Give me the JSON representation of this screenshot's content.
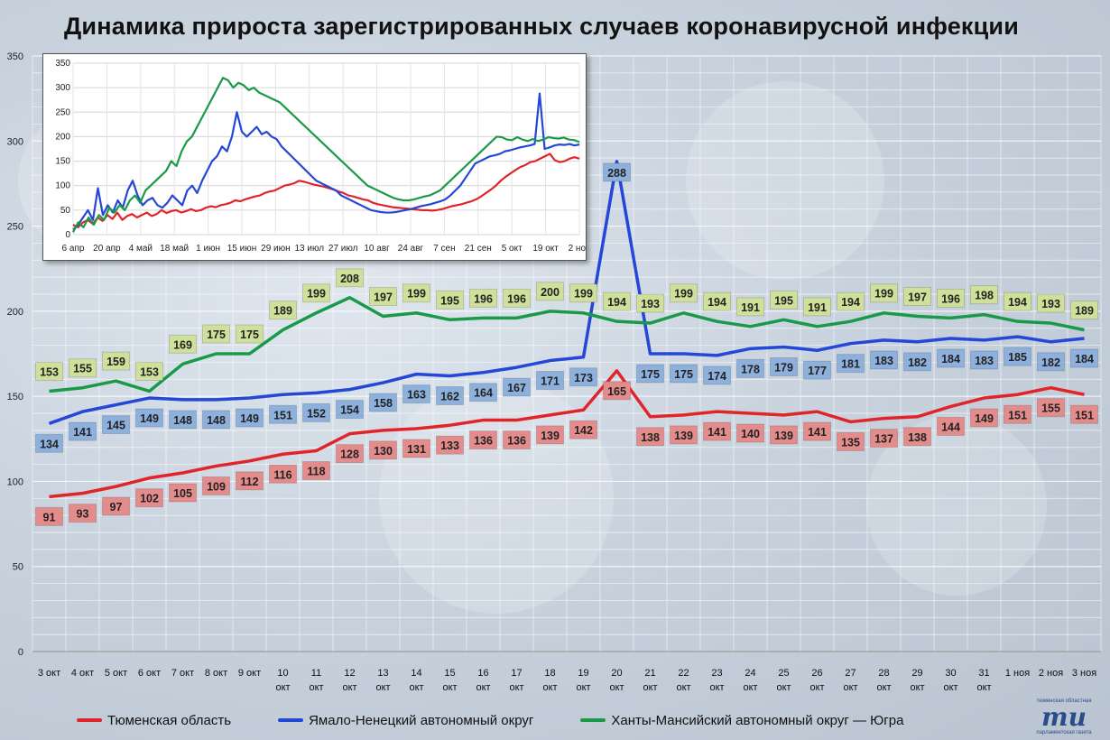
{
  "title": "Динамика прироста зарегистрированных случаев коронавирусной инфекции",
  "colors": {
    "tyumen": "#e0242a",
    "yamal": "#2447d8",
    "hmao": "#1a9a48",
    "label_tyumen": "#e48c8c",
    "label_yamal": "#8db0dc",
    "label_hmao": "#cfe09a"
  },
  "chart_data": [
    {
      "type": "line",
      "title": "Динамика прироста зарегистрированных случаев коронавирусной инфекции",
      "ylim": [
        0,
        350
      ],
      "yticks": [
        "0",
        "50",
        "100",
        "150",
        "200",
        "250",
        "300",
        "350"
      ],
      "grid": true,
      "legend_position": "bottom",
      "categories": [
        [
          "3 окт"
        ],
        [
          "4 окт"
        ],
        [
          "5 окт"
        ],
        [
          "6 окт"
        ],
        [
          "7 окт"
        ],
        [
          "8 окт"
        ],
        [
          "9 окт"
        ],
        [
          "10",
          "окт"
        ],
        [
          "11",
          "окт"
        ],
        [
          "12",
          "окт"
        ],
        [
          "13",
          "окт"
        ],
        [
          "14",
          "окт"
        ],
        [
          "15",
          "окт"
        ],
        [
          "16",
          "окт"
        ],
        [
          "17",
          "окт"
        ],
        [
          "18",
          "окт"
        ],
        [
          "19",
          "окт"
        ],
        [
          "20",
          "окт"
        ],
        [
          "21",
          "окт"
        ],
        [
          "22",
          "окт"
        ],
        [
          "23",
          "окт"
        ],
        [
          "24",
          "окт"
        ],
        [
          "25",
          "окт"
        ],
        [
          "26",
          "окт"
        ],
        [
          "27",
          "окт"
        ],
        [
          "28",
          "окт"
        ],
        [
          "29",
          "окт"
        ],
        [
          "30",
          "окт"
        ],
        [
          "31",
          "окт"
        ],
        [
          "1 ноя"
        ],
        [
          "2 ноя"
        ],
        [
          "3 ноя"
        ]
      ],
      "series": [
        {
          "name": "Тюменская область",
          "key": "tyumen",
          "values": [
            91,
            93,
            97,
            102,
            105,
            109,
            112,
            116,
            118,
            128,
            130,
            131,
            133,
            136,
            136,
            139,
            142,
            165,
            138,
            139,
            141,
            140,
            139,
            141,
            135,
            137,
            138,
            144,
            149,
            151,
            155,
            151
          ]
        },
        {
          "name": "Ямало-Ненецкий автономный округ",
          "key": "yamal",
          "values": [
            134,
            141,
            145,
            149,
            148,
            148,
            149,
            151,
            152,
            154,
            158,
            163,
            162,
            164,
            167,
            171,
            173,
            288,
            175,
            175,
            174,
            178,
            179,
            177,
            181,
            183,
            182,
            184,
            183,
            185,
            182,
            184
          ]
        },
        {
          "name": "Ханты-Мансийский автономный округ — Югра",
          "key": "hmao",
          "values": [
            153,
            155,
            159,
            153,
            169,
            175,
            175,
            189,
            199,
            208,
            197,
            199,
            195,
            196,
            196,
            200,
            199,
            194,
            193,
            199,
            194,
            191,
            195,
            191,
            194,
            199,
            197,
            196,
            198,
            194,
            193,
            189
          ]
        }
      ]
    },
    {
      "type": "line",
      "ylim": [
        0,
        350
      ],
      "yticks": [
        "0",
        "50",
        "100",
        "150",
        "200",
        "250",
        "300",
        "350"
      ],
      "xticks": [
        "6 апр",
        "20 апр",
        "4 май",
        "18 май",
        "1 июн",
        "15 июн",
        "29 июн",
        "13 июл",
        "27 июл",
        "10 авг",
        "24 авг",
        "7 сен",
        "21 сен",
        "5 окт",
        "19 окт",
        "2 ноя"
      ],
      "grid": true,
      "series": [
        {
          "key": "tyumen",
          "values": [
            20,
            15,
            25,
            30,
            22,
            35,
            28,
            40,
            32,
            45,
            30,
            38,
            42,
            35,
            40,
            45,
            38,
            42,
            50,
            44,
            48,
            50,
            45,
            48,
            52,
            48,
            50,
            55,
            58,
            56,
            60,
            62,
            65,
            70,
            68,
            72,
            75,
            78,
            80,
            85,
            88,
            90,
            95,
            100,
            102,
            105,
            110,
            108,
            105,
            102,
            100,
            98,
            95,
            92,
            88,
            85,
            80,
            78,
            75,
            72,
            70,
            65,
            62,
            60,
            58,
            56,
            55,
            54,
            53,
            52,
            51,
            50,
            50,
            49,
            50,
            52,
            55,
            58,
            60,
            62,
            65,
            68,
            72,
            78,
            85,
            92,
            100,
            110,
            118,
            125,
            132,
            138,
            142,
            148,
            150,
            155,
            160,
            165,
            152,
            148,
            150,
            155,
            158,
            155
          ]
        },
        {
          "key": "yamal",
          "values": [
            10,
            20,
            35,
            50,
            30,
            95,
            40,
            60,
            45,
            70,
            55,
            90,
            110,
            80,
            60,
            70,
            75,
            60,
            55,
            65,
            80,
            70,
            60,
            90,
            100,
            85,
            110,
            130,
            150,
            160,
            180,
            170,
            200,
            250,
            210,
            200,
            210,
            220,
            205,
            210,
            200,
            195,
            180,
            170,
            160,
            150,
            140,
            130,
            120,
            110,
            105,
            100,
            95,
            90,
            80,
            75,
            70,
            65,
            60,
            55,
            50,
            48,
            46,
            45,
            45,
            46,
            48,
            50,
            52,
            55,
            58,
            60,
            62,
            65,
            68,
            72,
            80,
            90,
            100,
            115,
            130,
            145,
            150,
            155,
            160,
            162,
            165,
            170,
            172,
            175,
            178,
            180,
            182,
            185,
            288,
            175,
            178,
            182,
            184,
            183,
            185,
            182,
            184
          ]
        },
        {
          "key": "hmao",
          "values": [
            5,
            25,
            15,
            35,
            20,
            40,
            30,
            55,
            45,
            60,
            50,
            70,
            80,
            65,
            90,
            100,
            110,
            120,
            130,
            150,
            140,
            170,
            190,
            200,
            220,
            240,
            260,
            280,
            300,
            320,
            315,
            300,
            310,
            305,
            295,
            300,
            290,
            285,
            280,
            275,
            270,
            260,
            250,
            240,
            230,
            220,
            210,
            200,
            190,
            180,
            170,
            160,
            150,
            140,
            130,
            120,
            110,
            100,
            95,
            90,
            85,
            80,
            75,
            72,
            70,
            70,
            72,
            75,
            78,
            80,
            85,
            90,
            100,
            110,
            120,
            130,
            140,
            150,
            160,
            170,
            180,
            190,
            200,
            199,
            194,
            193,
            199,
            194,
            191,
            195,
            191,
            194,
            199,
            197,
            196,
            198,
            194,
            193,
            189
          ]
        }
      ]
    }
  ],
  "legend": [
    {
      "label": "Тюменская область",
      "key": "tyumen"
    },
    {
      "label": "Ямало-Ненецкий автономный округ",
      "key": "yamal"
    },
    {
      "label": "Ханты-Мансийский автономный округ — Югра",
      "key": "hmao"
    }
  ],
  "logo": {
    "top": "тюменская областная",
    "mark": "ти",
    "bottom": "парламентская газета"
  }
}
